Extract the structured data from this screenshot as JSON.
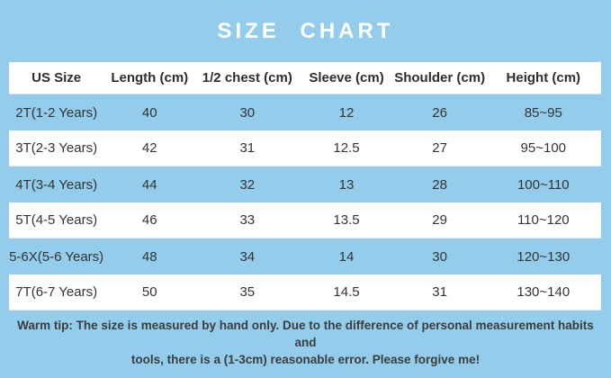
{
  "page": {
    "title": "SIZE CHART",
    "background_color": "#93CDEB",
    "title_color": "#FFFFFF",
    "row_white_color": "#FFFFFF",
    "row_blue_color": "#93CDEB",
    "text_color": "#333333"
  },
  "chart_data": {
    "type": "table",
    "title": "SIZE CHART",
    "columns": [
      "US Size",
      "Length (cm)",
      "1/2 chest (cm)",
      "Sleeve (cm)",
      "Shoulder (cm)",
      "Height (cm)"
    ],
    "rows": [
      [
        "2T(1-2 Years)",
        "40",
        "30",
        "12",
        "26",
        "85~95"
      ],
      [
        "3T(2-3 Years)",
        "42",
        "31",
        "12.5",
        "27",
        "95~100"
      ],
      [
        "4T(3-4 Years)",
        "44",
        "32",
        "13",
        "28",
        "100~110"
      ],
      [
        "5T(4-5 Years)",
        "46",
        "33",
        "13.5",
        "29",
        "110~120"
      ],
      [
        "5-6X(5-6 Years)",
        "48",
        "34",
        "14",
        "30",
        "120~130"
      ],
      [
        "7T(6-7 Years)",
        "50",
        "35",
        "14.5",
        "31",
        "130~140"
      ]
    ],
    "layout": {
      "striped": true,
      "stripe_pattern": "odd rows blue (same as page background), even rows white, white header"
    }
  },
  "footer": {
    "warm_tip_line1": "Warm tip: The size is measured by hand only. Due to the difference of personal measurement habits and",
    "warm_tip_line2": "tools, there is a (1-3cm) reasonable error. Please forgive me!"
  }
}
